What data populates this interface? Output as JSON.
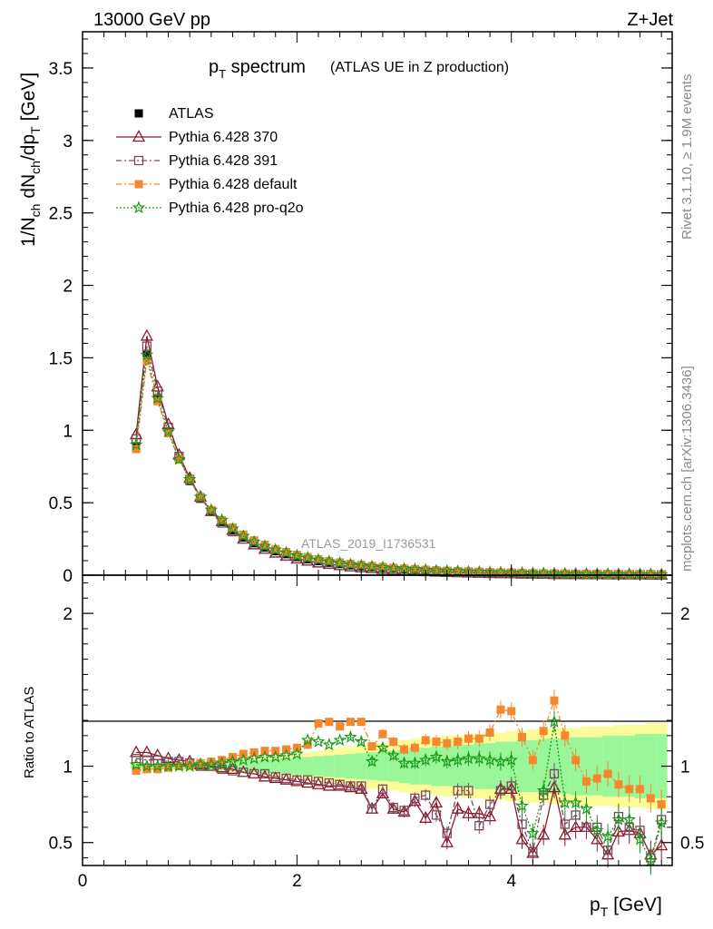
{
  "header": {
    "left": "13000 GeV pp",
    "right": "Z+Jet"
  },
  "side_labels": {
    "rivet": "Rivet 3.1.10, ≥ 1.9M events",
    "source": "mcplots.cern.ch [arXiv:1306.3436]"
  },
  "watermark": "ATLAS_2019_I1736531",
  "chart_data": [
    {
      "type": "line",
      "panel": "main",
      "title": {
        "main": "p",
        "sub": "T",
        "rest": " spectrum",
        "note": "(ATLAS UE in Z production)"
      },
      "ylabel": {
        "parts": [
          "1/N",
          "ch",
          " dN",
          "ch",
          "/dp",
          "T",
          " [GeV]"
        ]
      },
      "xlim": [
        0,
        5.5
      ],
      "ylim": [
        0,
        3.75
      ],
      "yticks": [
        0,
        0.5,
        1,
        1.5,
        2,
        2.5,
        3,
        3.5
      ],
      "ytick_labels": [
        "0",
        "0.5",
        "1",
        "1.5",
        "2",
        "2.5",
        "3",
        "3.5"
      ],
      "legend_position": "top-left",
      "x": [
        0.5,
        0.6,
        0.7,
        0.8,
        0.9,
        1.0,
        1.1,
        1.2,
        1.3,
        1.4,
        1.5,
        1.6,
        1.7,
        1.8,
        1.9,
        2.0,
        2.1,
        2.2,
        2.3,
        2.4,
        2.5,
        2.6,
        2.7,
        2.8,
        2.9,
        3.0,
        3.1,
        3.2,
        3.3,
        3.4,
        3.5,
        3.6,
        3.7,
        3.8,
        3.9,
        4.0,
        4.1,
        4.2,
        4.3,
        4.4,
        4.5,
        4.6,
        4.7,
        4.8,
        4.9,
        5.0,
        5.1,
        5.2,
        5.3,
        5.4
      ],
      "series": [
        {
          "name": "ATLAS",
          "color": "#000000",
          "marker": "square-filled",
          "values": [
            0.89,
            1.52,
            1.22,
            0.99,
            0.8,
            0.65,
            0.53,
            0.44,
            0.37,
            0.31,
            0.26,
            0.22,
            0.19,
            0.165,
            0.145,
            0.125,
            0.11,
            0.097,
            0.086,
            0.077,
            0.068,
            0.061,
            0.055,
            0.049,
            0.044,
            0.04,
            0.036,
            0.032,
            0.029,
            0.026,
            0.024,
            0.022,
            0.02,
            0.018,
            0.016,
            0.015,
            0.013,
            0.012,
            0.011,
            0.01,
            0.009,
            0.008,
            0.007,
            0.007,
            0.006,
            0.006,
            0.005,
            0.005,
            0.004,
            0.004
          ]
        },
        {
          "name": "Pythia 6.428 370",
          "color": "#8b1a2b",
          "marker": "triangle-open",
          "values": [
            0.97,
            1.65,
            1.3,
            1.04,
            0.83,
            0.67,
            0.54,
            0.44,
            0.37,
            0.31,
            0.25,
            0.21,
            0.18,
            0.153,
            0.132,
            0.112,
            0.098,
            0.085,
            0.075,
            0.067,
            0.058,
            0.052,
            0.046,
            0.04,
            0.035,
            0.032,
            0.028,
            0.025,
            0.022,
            0.02,
            0.018,
            0.016,
            0.014,
            0.013,
            0.011,
            0.01,
            0.009,
            0.008,
            0.007,
            0.006,
            0.005,
            0.005,
            0.004,
            0.004,
            0.003,
            0.003,
            0.003,
            0.003,
            0.002,
            0.002
          ]
        },
        {
          "name": "Pythia 6.428 391",
          "color": "#7a4a5e",
          "marker": "square-open",
          "values": [
            0.94,
            1.58,
            1.27,
            1.02,
            0.82,
            0.66,
            0.53,
            0.44,
            0.36,
            0.3,
            0.25,
            0.21,
            0.18,
            0.154,
            0.133,
            0.114,
            0.1,
            0.087,
            0.077,
            0.068,
            0.059,
            0.053,
            0.047,
            0.041,
            0.036,
            0.033,
            0.029,
            0.026,
            0.023,
            0.021,
            0.019,
            0.017,
            0.015,
            0.013,
            0.012,
            0.011,
            0.009,
            0.008,
            0.007,
            0.006,
            0.006,
            0.005,
            0.004,
            0.004,
            0.004,
            0.003,
            0.003,
            0.003,
            0.003,
            0.002
          ]
        },
        {
          "name": "Pythia 6.428 default",
          "color": "#f7872c",
          "marker": "square-filled",
          "values": [
            0.87,
            1.48,
            1.2,
            0.98,
            0.8,
            0.66,
            0.54,
            0.45,
            0.38,
            0.33,
            0.28,
            0.24,
            0.21,
            0.18,
            0.16,
            0.14,
            0.125,
            0.11,
            0.098,
            0.088,
            0.078,
            0.071,
            0.064,
            0.057,
            0.051,
            0.046,
            0.042,
            0.038,
            0.034,
            0.031,
            0.028,
            0.026,
            0.024,
            0.021,
            0.019,
            0.018,
            0.016,
            0.014,
            0.013,
            0.012,
            0.011,
            0.01,
            0.009,
            0.008,
            0.007,
            0.007,
            0.006,
            0.006,
            0.005,
            0.005
          ]
        },
        {
          "name": "Pythia 6.428 pro-q2o",
          "color": "#1a9a1a",
          "marker": "star-open",
          "values": [
            0.9,
            1.52,
            1.22,
            0.99,
            0.8,
            0.66,
            0.54,
            0.45,
            0.38,
            0.32,
            0.27,
            0.23,
            0.2,
            0.175,
            0.155,
            0.135,
            0.12,
            0.106,
            0.094,
            0.084,
            0.074,
            0.067,
            0.06,
            0.054,
            0.048,
            0.044,
            0.04,
            0.036,
            0.032,
            0.029,
            0.027,
            0.024,
            0.022,
            0.02,
            0.018,
            0.017,
            0.015,
            0.013,
            0.012,
            0.011,
            0.01,
            0.009,
            0.008,
            0.008,
            0.007,
            0.006,
            0.006,
            0.005,
            0.005,
            0.004
          ]
        }
      ]
    },
    {
      "type": "line",
      "panel": "ratio",
      "ylabel": "Ratio to ATLAS",
      "xlabel": {
        "main": "p",
        "sub": "T",
        "rest": " [GeV]"
      },
      "xlim": [
        0,
        5.5
      ],
      "ylim": [
        0.35,
        2.25
      ],
      "xticks": [
        0,
        2,
        4
      ],
      "xtick_labels": [
        "0",
        "2",
        "4"
      ],
      "yticks": [
        0.5,
        1,
        2
      ],
      "ytick_labels": [
        "0.5",
        "1",
        "2"
      ],
      "reference_line": 1,
      "x": [
        0.5,
        0.6,
        0.7,
        0.8,
        0.9,
        1.0,
        1.1,
        1.2,
        1.3,
        1.4,
        1.5,
        1.6,
        1.7,
        1.8,
        1.9,
        2.0,
        2.1,
        2.2,
        2.3,
        2.4,
        2.5,
        2.6,
        2.7,
        2.8,
        2.9,
        3.0,
        3.1,
        3.2,
        3.3,
        3.4,
        3.5,
        3.6,
        3.7,
        3.8,
        3.9,
        4.0,
        4.1,
        4.2,
        4.3,
        4.4,
        4.5,
        4.6,
        4.7,
        4.8,
        4.9,
        5.0,
        5.1,
        5.2,
        5.3,
        5.4
      ],
      "bands": {
        "green_halfwidth": [
          0.015,
          0.015,
          0.015,
          0.017,
          0.02,
          0.022,
          0.025,
          0.028,
          0.03,
          0.033,
          0.036,
          0.04,
          0.043,
          0.046,
          0.05,
          0.055,
          0.06,
          0.065,
          0.07,
          0.075,
          0.08,
          0.085,
          0.09,
          0.095,
          0.1,
          0.11,
          0.12,
          0.12,
          0.13,
          0.13,
          0.14,
          0.14,
          0.15,
          0.15,
          0.16,
          0.16,
          0.17,
          0.17,
          0.18,
          0.18,
          0.18,
          0.19,
          0.19,
          0.19,
          0.2,
          0.2,
          0.2,
          0.21,
          0.21,
          0.21
        ],
        "yellow_halfwidth": [
          0.02,
          0.02,
          0.02,
          0.025,
          0.028,
          0.03,
          0.033,
          0.036,
          0.04,
          0.045,
          0.05,
          0.055,
          0.06,
          0.065,
          0.07,
          0.08,
          0.09,
          0.1,
          0.11,
          0.12,
          0.13,
          0.14,
          0.15,
          0.15,
          0.16,
          0.17,
          0.18,
          0.18,
          0.19,
          0.2,
          0.2,
          0.21,
          0.21,
          0.22,
          0.22,
          0.23,
          0.23,
          0.24,
          0.24,
          0.25,
          0.25,
          0.25,
          0.26,
          0.26,
          0.26,
          0.27,
          0.27,
          0.27,
          0.28,
          0.28
        ],
        "green_color": "#99f799",
        "yellow_color": "#fbfb99"
      },
      "series": [
        {
          "name": "Pythia 6.428 370",
          "color": "#8b1a2b",
          "marker": "triangle-open",
          "values": [
            1.09,
            1.09,
            1.07,
            1.05,
            1.04,
            1.03,
            1.01,
            1.0,
            0.99,
            0.98,
            0.96,
            0.95,
            0.93,
            0.92,
            0.91,
            0.9,
            0.89,
            0.88,
            0.87,
            0.87,
            0.86,
            0.85,
            0.72,
            0.82,
            0.72,
            0.7,
            0.77,
            0.66,
            0.76,
            0.5,
            0.72,
            0.69,
            0.69,
            0.67,
            0.85,
            0.85,
            0.52,
            0.43,
            0.55,
            0.86,
            0.55,
            0.6,
            0.6,
            0.52,
            0.42,
            0.57,
            0.58,
            0.56,
            0.42,
            0.48
          ]
        },
        {
          "name": "Pythia 6.428 391",
          "color": "#7a4a5e",
          "marker": "square-open",
          "values": [
            1.05,
            1.04,
            1.04,
            1.03,
            1.03,
            1.02,
            1.0,
            1.0,
            0.98,
            0.97,
            0.96,
            0.95,
            0.95,
            0.93,
            0.92,
            0.91,
            0.91,
            0.9,
            0.89,
            0.88,
            0.87,
            0.87,
            0.72,
            0.85,
            0.73,
            0.71,
            0.79,
            0.81,
            0.68,
            0.56,
            0.84,
            0.84,
            0.61,
            0.75,
            0.84,
            0.87,
            0.62,
            0.44,
            0.81,
            0.95,
            0.62,
            0.68,
            0.6,
            0.6,
            0.45,
            0.67,
            0.6,
            0.58,
            0.4,
            0.65
          ]
        },
        {
          "name": "Pythia 6.428 default",
          "color": "#f7872c",
          "marker": "square-filled",
          "values": [
            0.97,
            0.98,
            0.98,
            0.99,
            1.0,
            1.01,
            1.02,
            1.03,
            1.04,
            1.06,
            1.08,
            1.09,
            1.1,
            1.1,
            1.11,
            1.12,
            1.14,
            1.28,
            1.29,
            1.26,
            1.29,
            1.29,
            1.13,
            1.21,
            1.16,
            1.11,
            1.12,
            1.17,
            1.16,
            1.15,
            1.16,
            1.18,
            1.18,
            1.22,
            1.37,
            1.36,
            1.19,
            1.04,
            1.23,
            1.43,
            1.2,
            1.04,
            0.9,
            0.92,
            0.95,
            0.88,
            0.85,
            0.85,
            0.79,
            0.75
          ]
        },
        {
          "name": "Pythia 6.428 pro-q2o",
          "color": "#1a9a1a",
          "marker": "star-open",
          "values": [
            1.01,
            1.0,
            1.0,
            1.0,
            1.0,
            1.0,
            1.01,
            1.01,
            1.02,
            1.03,
            1.04,
            1.05,
            1.06,
            1.06,
            1.07,
            1.08,
            1.17,
            1.16,
            1.14,
            1.17,
            1.19,
            1.16,
            1.03,
            1.12,
            1.07,
            1.02,
            1.02,
            1.04,
            1.06,
            1.03,
            1.04,
            1.05,
            1.05,
            1.04,
            1.03,
            1.04,
            0.74,
            0.56,
            0.84,
            1.29,
            0.76,
            0.76,
            0.72,
            0.58,
            0.54,
            0.65,
            0.65,
            0.52,
            0.38,
            0.63
          ]
        }
      ]
    }
  ]
}
